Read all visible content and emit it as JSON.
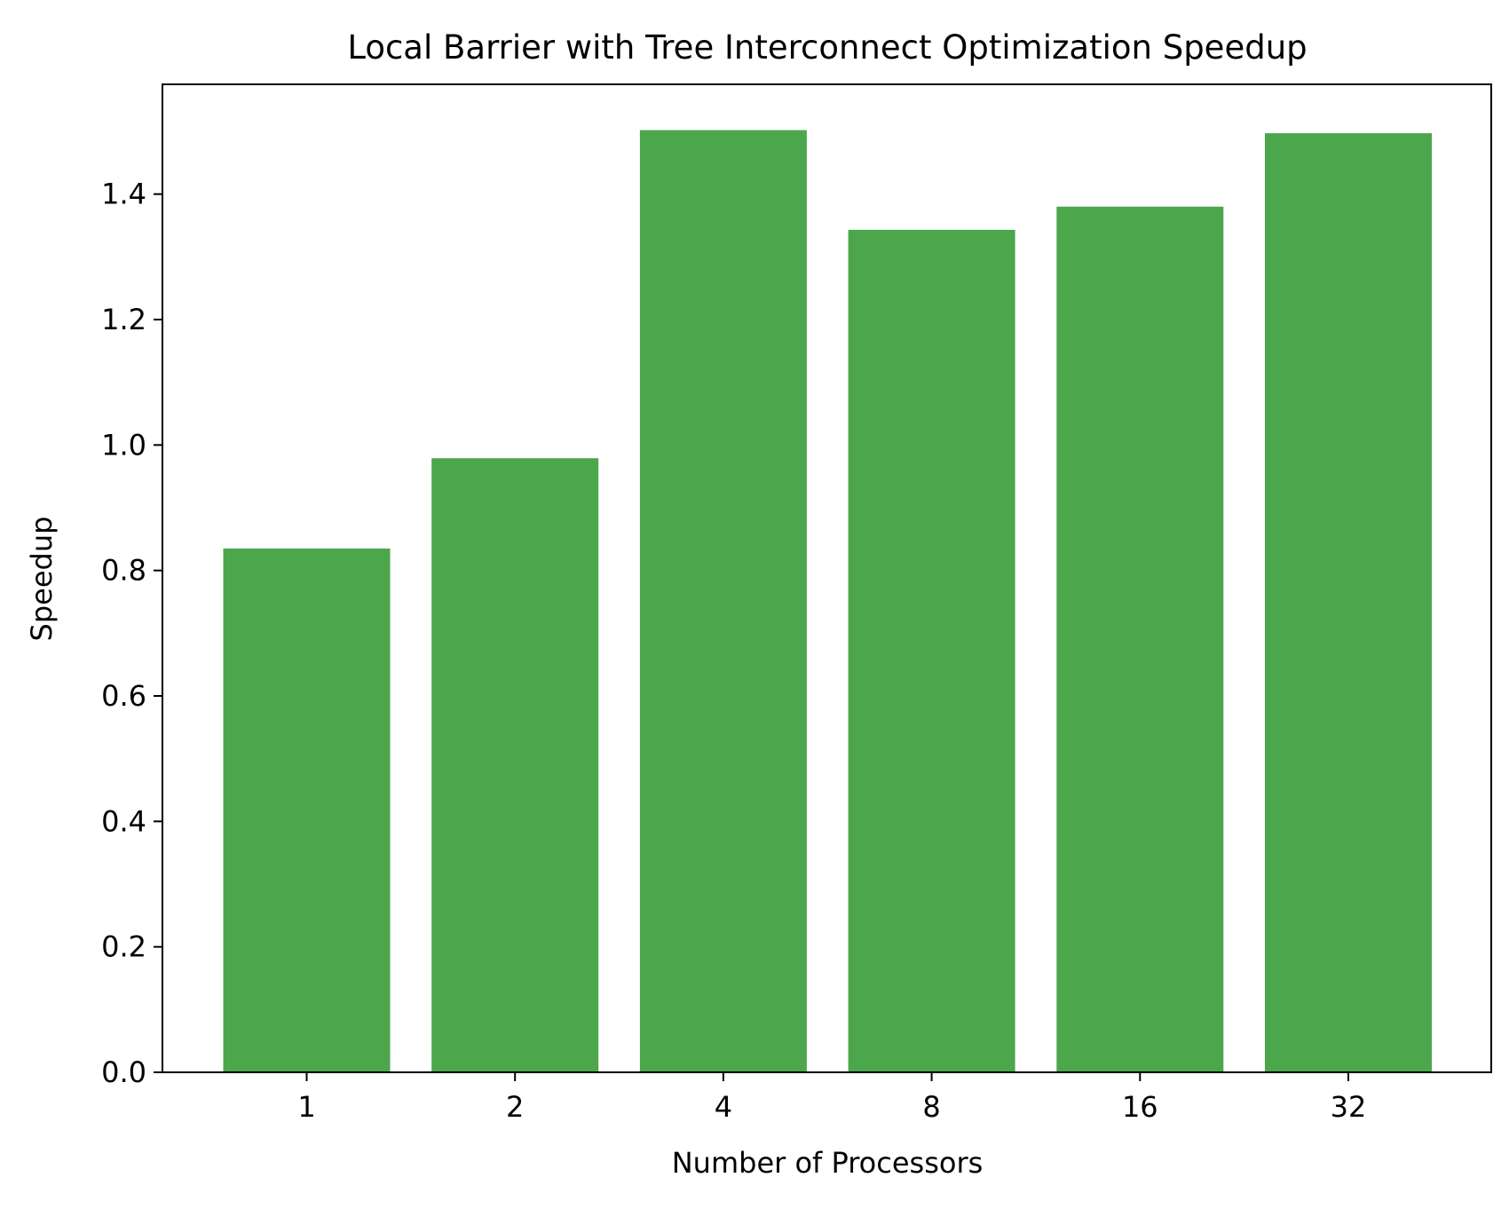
{
  "chart_data": {
    "type": "bar",
    "title": "Local Barrier with Tree Interconnect Optimization Speedup",
    "xlabel": "Number of Processors",
    "ylabel": "Speedup",
    "categories": [
      "1",
      "2",
      "4",
      "8",
      "16",
      "32"
    ],
    "values": [
      0.835,
      0.979,
      1.502,
      1.343,
      1.38,
      1.497
    ],
    "ylim": [
      0,
      1.575
    ],
    "yticks": [
      0.0,
      0.2,
      0.4,
      0.6,
      0.8,
      1.0,
      1.2,
      1.4
    ],
    "ytick_labels": [
      "0.0",
      "0.2",
      "0.4",
      "0.6",
      "0.8",
      "1.0",
      "1.2",
      "1.4"
    ],
    "bar_color": "#4ca64c",
    "grid": false,
    "legend": "none"
  }
}
